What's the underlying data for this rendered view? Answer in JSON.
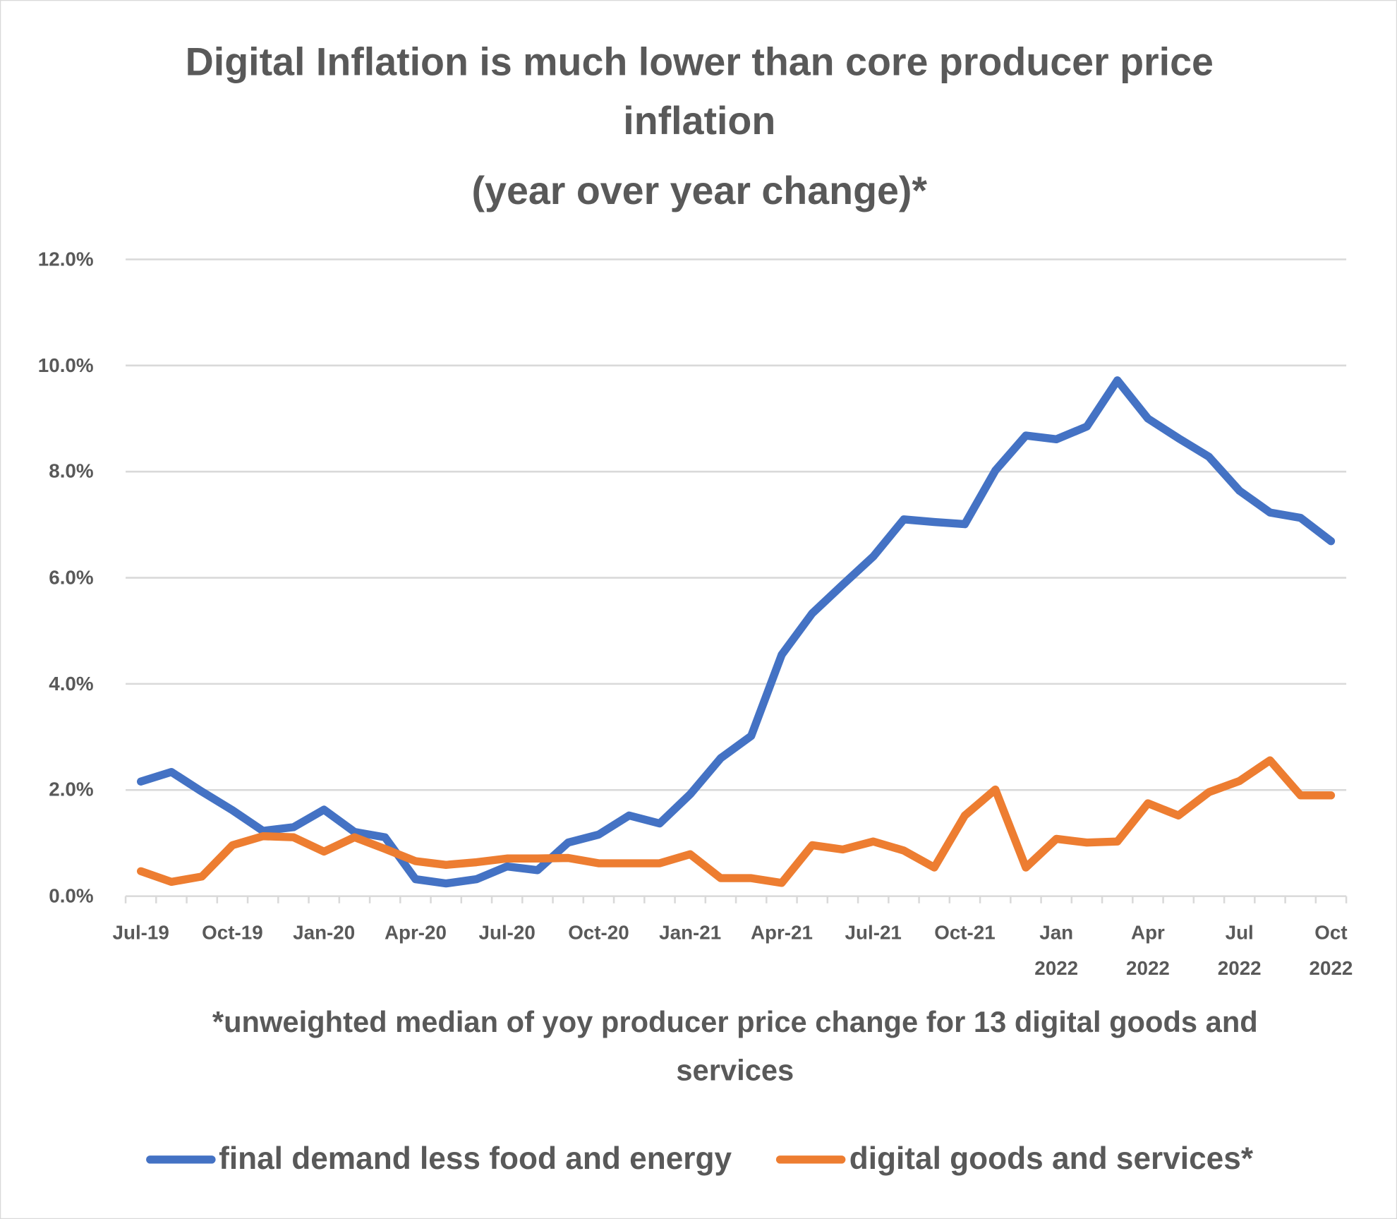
{
  "chart_data": {
    "type": "line",
    "title": "Digital Inflation is much lower than core producer price inflation",
    "subtitle": "(year over year change)*",
    "footnote": "*unweighted median of yoy producer price change for 13 digital goods and services",
    "categories": [
      "Jul-19",
      null,
      null,
      "Oct-19",
      null,
      null,
      "Jan-20",
      null,
      null,
      "Apr-20",
      null,
      null,
      "Jul-20",
      null,
      null,
      "Oct-20",
      null,
      null,
      "Jan-21",
      null,
      null,
      "Apr-21",
      null,
      null,
      "Jul-21",
      null,
      null,
      "Oct-21",
      null,
      null,
      "Jan 2022",
      null,
      null,
      "Apr 2022",
      null,
      null,
      "Jul 2022",
      null,
      null,
      "Oct 2022"
    ],
    "series": [
      {
        "name": "final demand less food and energy",
        "color": "#4472c4",
        "values": [
          2.16,
          2.34,
          1.97,
          1.62,
          1.23,
          1.3,
          1.63,
          1.21,
          1.11,
          0.32,
          0.24,
          0.32,
          0.56,
          0.49,
          1.01,
          1.16,
          1.52,
          1.37,
          1.92,
          2.6,
          3.02,
          4.55,
          5.33,
          5.87,
          6.4,
          7.1,
          7.05,
          7.01,
          8.02,
          8.68,
          8.61,
          8.85,
          9.72,
          9.0,
          8.63,
          8.28,
          7.64,
          7.23,
          7.13,
          6.69
        ]
      },
      {
        "name": "digital goods and services*",
        "color": "#ed7d31",
        "values": [
          0.47,
          0.27,
          0.37,
          0.96,
          1.13,
          1.11,
          0.84,
          1.11,
          0.89,
          0.66,
          0.59,
          0.64,
          0.71,
          0.71,
          0.72,
          0.62,
          0.62,
          0.62,
          0.79,
          0.34,
          0.34,
          0.25,
          0.96,
          0.88,
          1.03,
          0.86,
          0.54,
          1.52,
          2.01,
          0.54,
          1.08,
          1.01,
          1.03,
          1.75,
          1.52,
          1.96,
          2.17,
          2.56,
          1.9,
          1.9
        ]
      }
    ],
    "ylim": [
      0,
      12
    ],
    "yticks": [
      {
        "value": 0,
        "label": "0.0%"
      },
      {
        "value": 2,
        "label": "2.0%"
      },
      {
        "value": 4,
        "label": "4.0%"
      },
      {
        "value": 6,
        "label": "6.0%"
      },
      {
        "value": 8,
        "label": "8.0%"
      },
      {
        "value": 10,
        "label": "10.0%"
      },
      {
        "value": 12,
        "label": "12.0%"
      }
    ],
    "grid": true,
    "legend": "bottom"
  }
}
